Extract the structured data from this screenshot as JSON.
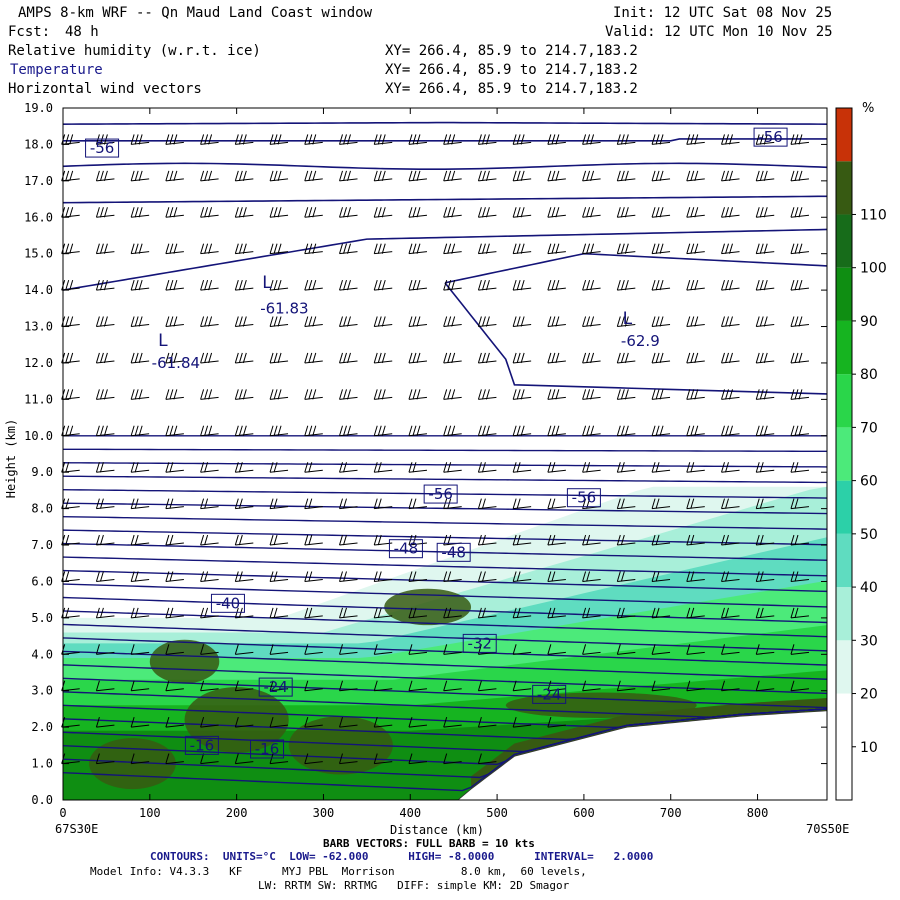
{
  "header": {
    "title": "AMPS 8-km WRF -- Qn Maud Land Coast window",
    "init": "Init: 12 UTC Sat 08 Nov 25",
    "fcst_label": "Fcst:",
    "fcst_value": "48 h",
    "valid": "Valid: 12 UTC Mon 10 Nov 25",
    "fields": [
      {
        "name": "Relative humidity (w.r.t. ice)",
        "xy": "XY= 266.4, 85.9 to 214.7,183.2"
      },
      {
        "name": "Temperature",
        "xy": "XY= 266.4, 85.9 to 214.7,183.2"
      },
      {
        "name": "Horizontal wind vectors",
        "xy": "XY= 266.4, 85.9 to 214.7,183.2"
      }
    ]
  },
  "colors": {
    "contour": "#141478",
    "barb": "#000000",
    "terrain": "#ffffff",
    "colorbar": [
      "#ffffff",
      "#ffffff",
      "#dff7ef",
      "#a8efd9",
      "#5fdcc0",
      "#2cd0a8",
      "#4cea7a",
      "#2ad64a",
      "#16b420",
      "#0f8e12",
      "#176c1a",
      "#375a12",
      "#c83208"
    ]
  },
  "chart_data": {
    "type": "cross-section",
    "xlabel": "Distance (km)",
    "ylabel": "Height (km)",
    "xlim": [
      0,
      880
    ],
    "ylim": [
      0,
      19
    ],
    "x_ticks": [
      0,
      100,
      200,
      300,
      400,
      500,
      600,
      700,
      800
    ],
    "y_ticks": [
      "0.0",
      "1.0",
      "2.0",
      "3.0",
      "4.0",
      "5.0",
      "6.0",
      "7.0",
      "8.0",
      "9.0",
      "10.0",
      "11.0",
      "12.0",
      "13.0",
      "14.0",
      "15.0",
      "16.0",
      "17.0",
      "18.0",
      "19.0"
    ],
    "x_start_label": "67S30E",
    "x_end_label": "70S50E",
    "colorbar": {
      "unit": "%",
      "ticks": [
        10,
        20,
        30,
        40,
        50,
        60,
        70,
        80,
        90,
        100,
        110
      ]
    },
    "contour_labels": [
      {
        "text": "-56",
        "x": 45,
        "y": 17.9
      },
      {
        "text": "-56",
        "x": 815,
        "y": 18.2
      },
      {
        "text": "L",
        "x": 235,
        "y": 14.2
      },
      {
        "text": "-61.83",
        "x": 255,
        "y": 13.5
      },
      {
        "text": "L",
        "x": 115,
        "y": 12.6
      },
      {
        "text": "-61.84",
        "x": 130,
        "y": 12.0
      },
      {
        "text": "L",
        "x": 650,
        "y": 13.2
      },
      {
        "text": "-62.9",
        "x": 665,
        "y": 12.6
      },
      {
        "text": "-56",
        "x": 435,
        "y": 8.4
      },
      {
        "text": "-56",
        "x": 600,
        "y": 8.3
      },
      {
        "text": "-48",
        "x": 395,
        "y": 6.9
      },
      {
        "text": "-48",
        "x": 450,
        "y": 6.8
      },
      {
        "text": "-40",
        "x": 190,
        "y": 5.4
      },
      {
        "text": "-32",
        "x": 480,
        "y": 4.3
      },
      {
        "text": "-24",
        "x": 245,
        "y": 3.1
      },
      {
        "text": "-24",
        "x": 560,
        "y": 2.9
      },
      {
        "text": "-16",
        "x": 160,
        "y": 1.5
      },
      {
        "text": "-16",
        "x": 235,
        "y": 1.4
      }
    ]
  },
  "footer": {
    "barb_note": "BARB VECTORS: FULL BARB = 10 kts",
    "contours_note": "CONTOURS:  UNITS=°C  LOW= -62.000      HIGH= -8.0000      INTERVAL=   2.0000",
    "model_line1": "Model Info: V4.3.3   KF      MYJ PBL  Morrison          8.0 km,  60 levels,",
    "model_line2": "LW: RRTM SW: RRTMG   DIFF: simple KM: 2D Smagor"
  }
}
